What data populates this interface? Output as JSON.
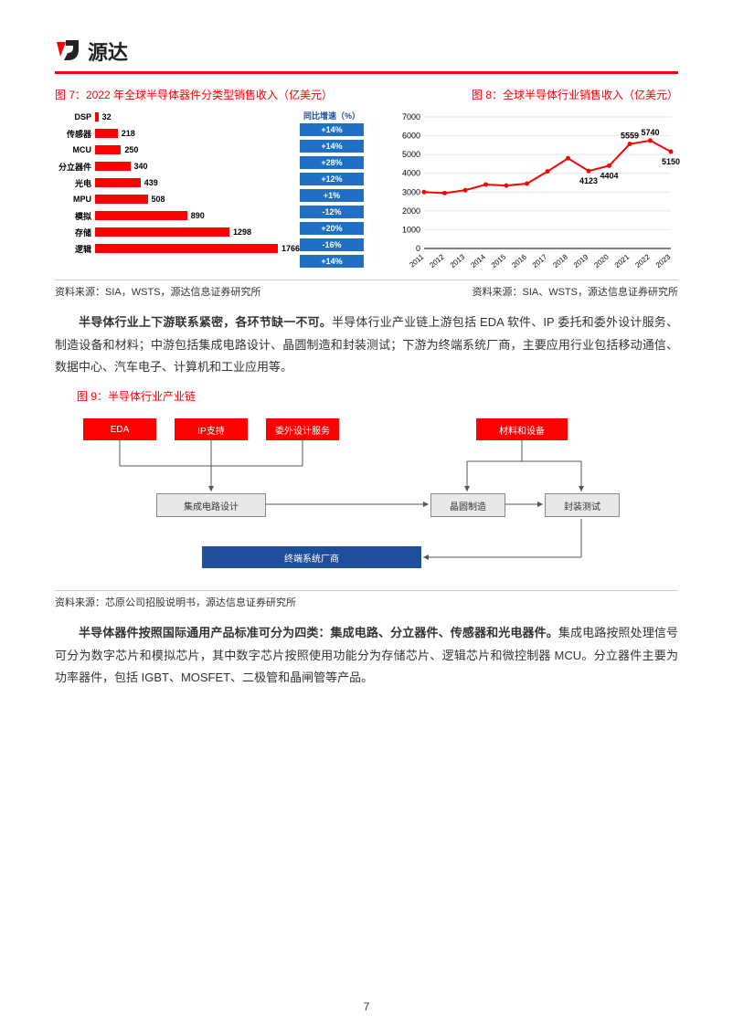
{
  "logo": {
    "brand": "源达"
  },
  "fig7": {
    "title": "图 7：2022 年全球半导体器件分类型销售收入（亿美元）",
    "type": "horizontal-bar",
    "bar_color": "#ff0000",
    "growth_header": "同比增速（%）",
    "growth_bg": "#1f6fc4",
    "max_value": 1766,
    "rows": [
      {
        "label": "DSP",
        "value": 32,
        "growth": "+14%"
      },
      {
        "label": "传感器",
        "value": 218,
        "growth": "+14%"
      },
      {
        "label": "MCU",
        "value": 250,
        "growth": "+28%"
      },
      {
        "label": "分立器件",
        "value": 340,
        "growth": "+12%"
      },
      {
        "label": "光电",
        "value": 439,
        "growth": "+1%"
      },
      {
        "label": "MPU",
        "value": 508,
        "growth": "-12%"
      },
      {
        "label": "模拟",
        "value": 890,
        "growth": "+20%"
      },
      {
        "label": "存储",
        "value": 1298,
        "growth": "-16%"
      },
      {
        "label": "逻辑",
        "value": 1766,
        "growth": "+14%"
      }
    ],
    "source": "资料来源：SIA，WSTS，源达信息证券研究所"
  },
  "fig8": {
    "title": "图 8：全球半导体行业销售收入（亿美元）",
    "type": "line",
    "line_color": "#ff0000",
    "line_width": 2,
    "ylim": [
      0,
      7000
    ],
    "ytick_step": 1000,
    "years": [
      "2011",
      "2012",
      "2013",
      "2014",
      "2015",
      "2016",
      "2017",
      "2018",
      "2019",
      "2020",
      "2021",
      "2022",
      "2023"
    ],
    "values": [
      3000,
      2950,
      3100,
      3400,
      3350,
      3450,
      4100,
      4800,
      4123,
      4404,
      5559,
      5740,
      5150
    ],
    "annotations": [
      {
        "year": "2019",
        "value": 4123,
        "label": "4123",
        "pos": "below"
      },
      {
        "year": "2020",
        "value": 4404,
        "label": "4404",
        "pos": "below"
      },
      {
        "year": "2021",
        "value": 5559,
        "label": "5559",
        "pos": "above"
      },
      {
        "year": "2022",
        "value": 5740,
        "label": "5740",
        "pos": "above"
      },
      {
        "year": "2023",
        "value": 5150,
        "label": "5150",
        "pos": "below"
      }
    ],
    "source": "资料来源：SIA、WSTS，源达信息证券研究所"
  },
  "para1": {
    "bold": "半导体行业上下游联系紧密，各环节缺一不可。",
    "rest": "半导体行业产业链上游包括 EDA 软件、IP 委托和委外设计服务、制造设备和材料；中游包括集成电路设计、晶圆制造和封装测试；下游为终端系统厂商，主要应用行业包括移动通信、数据中心、汽车电子、计算机和工业应用等。"
  },
  "fig9": {
    "title": "图 9：半导体行业产业链",
    "type": "flowchart",
    "colors": {
      "red": "#ff0000",
      "grey": "#e8e8e8",
      "blue": "#1f4e9c",
      "border": "#888888"
    },
    "nodes": {
      "eda": "EDA",
      "ip": "IP支持",
      "design_svc": "委外设计服务",
      "materials": "材料和设备",
      "ic_design": "集成电路设计",
      "wafer": "晶圆制造",
      "pkg": "封装测试",
      "end": "终端系统厂商"
    },
    "source": "资料来源：芯原公司招股说明书，源达信息证券研究所"
  },
  "para2": {
    "bold": "半导体器件按照国际通用产品标准可分为四类：集成电路、分立器件、传感器和光电器件。",
    "rest": "集成电路按照处理信号可分为数字芯片和模拟芯片，其中数字芯片按照使用功能分为存储芯片、逻辑芯片和微控制器 MCU。分立器件主要为功率器件，包括 IGBT、MOSFET、二极管和晶闸管等产品。"
  },
  "page_number": "7"
}
